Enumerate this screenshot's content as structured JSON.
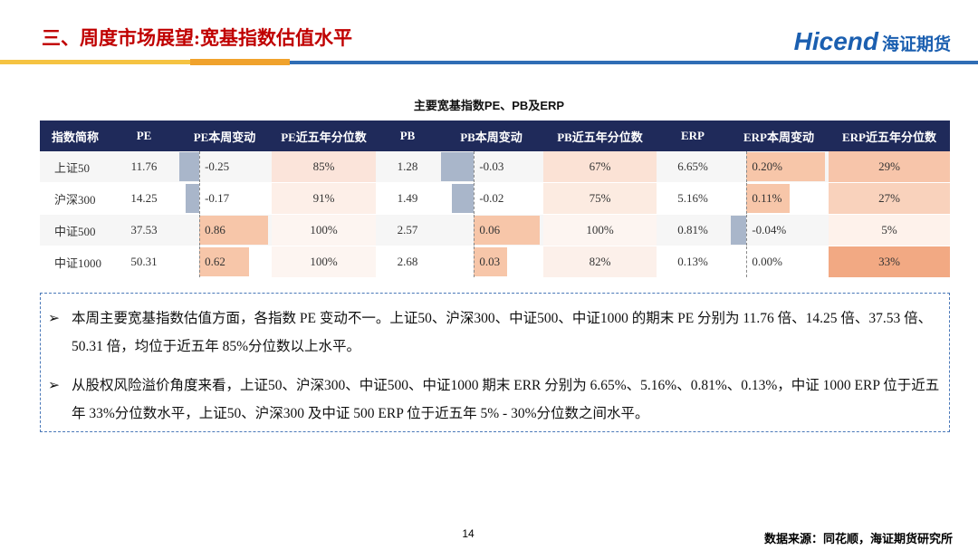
{
  "header": {
    "title": "三、周度市场展望:宽基指数估值水平",
    "logo_brand": "Hicend",
    "logo_name": "海证期货"
  },
  "table": {
    "title": "主要宽基指数PE、PB及ERP",
    "columns": [
      "指数简称",
      "PE",
      "PE本周变动",
      "PE近五年分位数",
      "PB",
      "PB本周变动",
      "PB近五年分位数",
      "ERP",
      "ERP本周变动",
      "ERP近五年分位数"
    ],
    "rows": [
      [
        "上证50",
        "11.76",
        "-0.25",
        "85%",
        "1.28",
        "-0.03",
        "67%",
        "6.65%",
        "0.20%",
        "29%"
      ],
      [
        "沪深300",
        "14.25",
        "-0.17",
        "91%",
        "1.49",
        "-0.02",
        "75%",
        "5.16%",
        "0.11%",
        "27%"
      ],
      [
        "中证500",
        "37.53",
        "0.86",
        "100%",
        "2.57",
        "0.06",
        "100%",
        "0.81%",
        "-0.04%",
        "5%"
      ],
      [
        "中证1000",
        "50.31",
        "0.62",
        "100%",
        "2.68",
        "0.03",
        "82%",
        "0.13%",
        "0.00%",
        "33%"
      ]
    ],
    "bar_columns": [
      2,
      5,
      8
    ],
    "bar_colors": {
      "negative": "#a9b6ca",
      "positive": "#f7c6a9"
    },
    "heat_columns": [
      3,
      6,
      9
    ],
    "heat_colors": [
      [
        "#fbe4da",
        "#fbe2d5",
        "#f7c5aa"
      ],
      [
        "#fdefe8",
        "#fcebe1",
        "#f9d2bc"
      ],
      [
        "#fdf5f1",
        "#fdf5f1",
        "#fef2eb"
      ],
      [
        "#fdf5f1",
        "#fcf0ea",
        "#f2a983"
      ]
    ]
  },
  "notes": [
    "本周主要宽基指数估值方面，各指数 PE 变动不一。上证50、沪深300、中证500、中证1000 的期末 PE 分别为 11.76 倍、14.25 倍、37.53 倍、50.31 倍，均位于近五年 85%分位数以上水平。",
    "从股权风险溢价角度来看，上证50、沪深300、中证500、中证1000 期末 ERR 分别为 6.65%、5.16%、0.81%、0.13%，中证 1000 ERP 位于近五年 33%分位数水平，上证50、沪深300 及中证 500 ERP 位于近五年 5% - 30%分位数之间水平。"
  ],
  "footer": {
    "page": "14",
    "source": "数据来源：同花顺，海证期货研究所"
  }
}
